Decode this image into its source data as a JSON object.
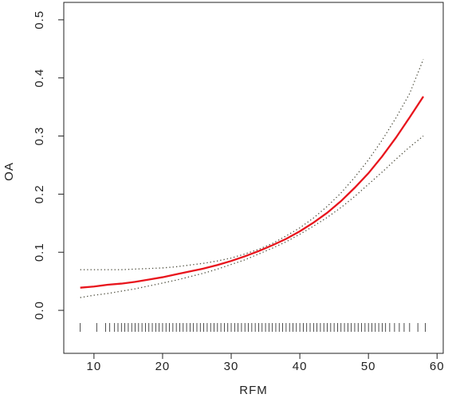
{
  "chart_data": {
    "type": "line",
    "x_label": "RFM",
    "y_label": "OA",
    "x": [
      8,
      10,
      12,
      14,
      16,
      18,
      20,
      22,
      24,
      26,
      28,
      30,
      32,
      34,
      36,
      38,
      40,
      42,
      44,
      46,
      48,
      50,
      52,
      54,
      56,
      58
    ],
    "series": [
      {
        "color": "#e8141c",
        "style": "solid",
        "values": [
          0.039,
          0.041,
          0.044,
          0.046,
          0.049,
          0.053,
          0.057,
          0.062,
          0.067,
          0.072,
          0.078,
          0.085,
          0.093,
          0.102,
          0.112,
          0.123,
          0.136,
          0.151,
          0.168,
          0.188,
          0.211,
          0.236,
          0.265,
          0.297,
          0.332,
          0.368
        ]
      },
      {
        "color": "#4a4a3a",
        "style": "dotted",
        "values": [
          0.07,
          0.07,
          0.07,
          0.07,
          0.071,
          0.072,
          0.073,
          0.075,
          0.078,
          0.081,
          0.085,
          0.09,
          0.097,
          0.105,
          0.115,
          0.128,
          0.142,
          0.159,
          0.179,
          0.202,
          0.229,
          0.259,
          0.293,
          0.331,
          0.373,
          0.432
        ]
      },
      {
        "color": "#4a4a3a",
        "style": "dotted",
        "values": [
          0.022,
          0.026,
          0.029,
          0.033,
          0.037,
          0.042,
          0.047,
          0.052,
          0.058,
          0.064,
          0.071,
          0.079,
          0.087,
          0.097,
          0.107,
          0.118,
          0.131,
          0.145,
          0.16,
          0.177,
          0.196,
          0.217,
          0.238,
          0.26,
          0.281,
          0.3
        ]
      }
    ],
    "rug": [
      8,
      10.4,
      11.7,
      12.3,
      13,
      13.5,
      14,
      14.5,
      15,
      15.5,
      16,
      16.5,
      17,
      17.5,
      18,
      18.5,
      19,
      19.5,
      20,
      20.5,
      21,
      21.5,
      22,
      22.5,
      23,
      23.5,
      24,
      24.5,
      25,
      25.5,
      26,
      26.5,
      27,
      27.5,
      28,
      28.5,
      29,
      29.5,
      30,
      30.5,
      31,
      31.5,
      32,
      32.5,
      33,
      33.5,
      34,
      34.5,
      35,
      35.5,
      36,
      36.5,
      37,
      37.5,
      38,
      38.5,
      39,
      39.5,
      40,
      40.5,
      41,
      41.5,
      42,
      42.5,
      43,
      43.5,
      44,
      44.5,
      45,
      45.5,
      46,
      46.5,
      47,
      47.5,
      48,
      48.5,
      49,
      49.5,
      50,
      50.5,
      51,
      51.5,
      52,
      52.5,
      53.1,
      53.8,
      54.5,
      55.2,
      56,
      57.2,
      58.3
    ],
    "xlim": [
      5.6,
      60.9
    ],
    "ylim": [
      -0.074,
      0.53
    ],
    "xticks": [
      10,
      20,
      30,
      40,
      50,
      60
    ],
    "yticks": [
      {
        "value": 0,
        "label": "0.0"
      },
      0.1,
      0.2,
      0.3,
      0.4,
      0.5
    ]
  }
}
